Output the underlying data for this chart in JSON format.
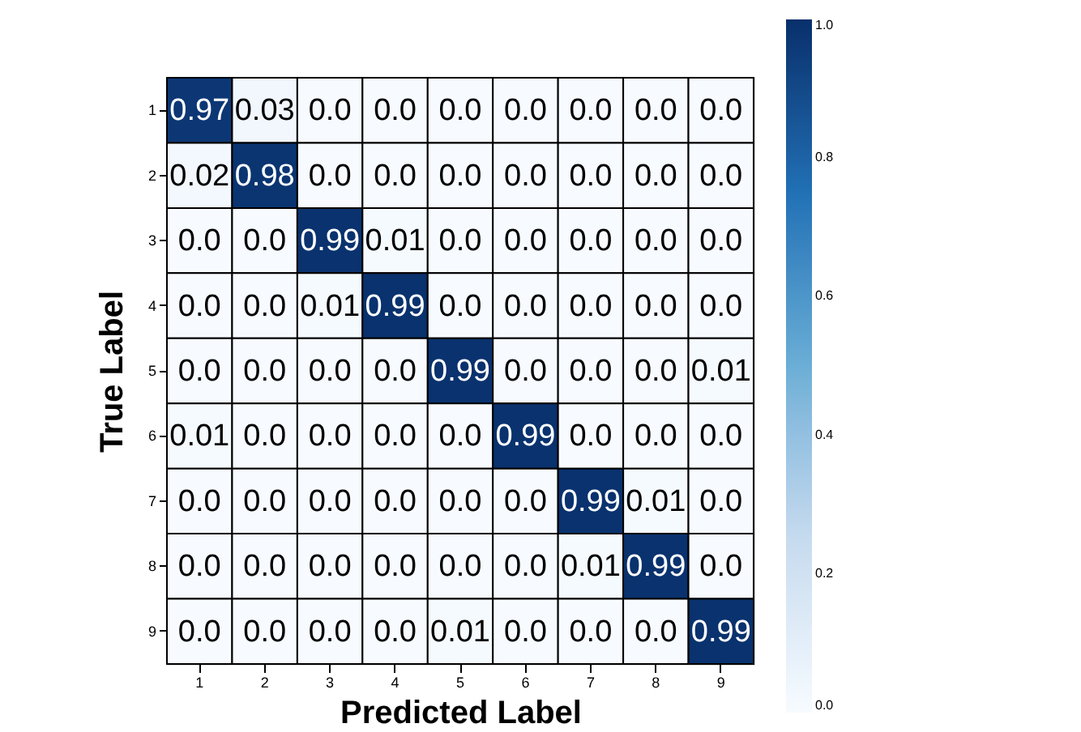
{
  "chart_data": {
    "type": "heatmap",
    "xlabel": "Predicted Label",
    "ylabel": "True Label",
    "categories": [
      "1",
      "2",
      "3",
      "4",
      "5",
      "6",
      "7",
      "8",
      "9"
    ],
    "y_categories": [
      "1",
      "2",
      "3",
      "4",
      "5",
      "6",
      "7",
      "8",
      "9"
    ],
    "cells": [
      [
        0.97,
        0.03,
        0,
        0,
        0,
        0,
        0,
        0,
        0
      ],
      [
        0.02,
        0.98,
        0,
        0,
        0,
        0,
        0,
        0,
        0
      ],
      [
        0,
        0,
        0.99,
        0.01,
        0,
        0,
        0,
        0,
        0
      ],
      [
        0,
        0,
        0.01,
        0.99,
        0,
        0,
        0,
        0,
        0
      ],
      [
        0,
        0,
        0,
        0,
        0.99,
        0,
        0,
        0,
        0.01
      ],
      [
        0.01,
        0,
        0,
        0,
        0,
        0.99,
        0,
        0,
        0
      ],
      [
        0,
        0,
        0,
        0,
        0,
        0,
        0.99,
        0.01,
        0
      ],
      [
        0,
        0,
        0,
        0,
        0,
        0,
        0.01,
        0.99,
        0
      ],
      [
        0,
        0,
        0,
        0,
        0.01,
        0,
        0,
        0,
        0.99
      ]
    ],
    "cell_labels": [
      [
        "0.97",
        "0.03",
        "0.0",
        "0.0",
        "0.0",
        "0.0",
        "0.0",
        "0.0",
        "0.0"
      ],
      [
        "0.02",
        "0.98",
        "0.0",
        "0.0",
        "0.0",
        "0.0",
        "0.0",
        "0.0",
        "0.0"
      ],
      [
        "0.0",
        "0.0",
        "0.99",
        "0.01",
        "0.0",
        "0.0",
        "0.0",
        "0.0",
        "0.0"
      ],
      [
        "0.0",
        "0.0",
        "0.01",
        "0.99",
        "0.0",
        "0.0",
        "0.0",
        "0.0",
        "0.0"
      ],
      [
        "0.0",
        "0.0",
        "0.0",
        "0.0",
        "0.99",
        "0.0",
        "0.0",
        "0.0",
        "0.01"
      ],
      [
        "0.01",
        "0.0",
        "0.0",
        "0.0",
        "0.0",
        "0.99",
        "0.0",
        "0.0",
        "0.0"
      ],
      [
        "0.0",
        "0.0",
        "0.0",
        "0.0",
        "0.0",
        "0.0",
        "0.99",
        "0.01",
        "0.0"
      ],
      [
        "0.0",
        "0.0",
        "0.0",
        "0.0",
        "0.0",
        "0.0",
        "0.01",
        "0.99",
        "0.0"
      ],
      [
        "0.0",
        "0.0",
        "0.0",
        "0.0",
        "0.01",
        "0.0",
        "0.0",
        "0.0",
        "0.99"
      ]
    ],
    "clim": [
      0,
      1
    ],
    "cticks": [
      {
        "value": 0,
        "label": "0.0"
      },
      {
        "value": 0.2,
        "label": "0.2"
      },
      {
        "value": 0.4,
        "label": "0.4"
      },
      {
        "value": 0.6,
        "label": "0.6"
      },
      {
        "value": 0.8,
        "label": "0.8"
      },
      {
        "value": 1,
        "label": "1.0"
      }
    ],
    "grid": false
  }
}
